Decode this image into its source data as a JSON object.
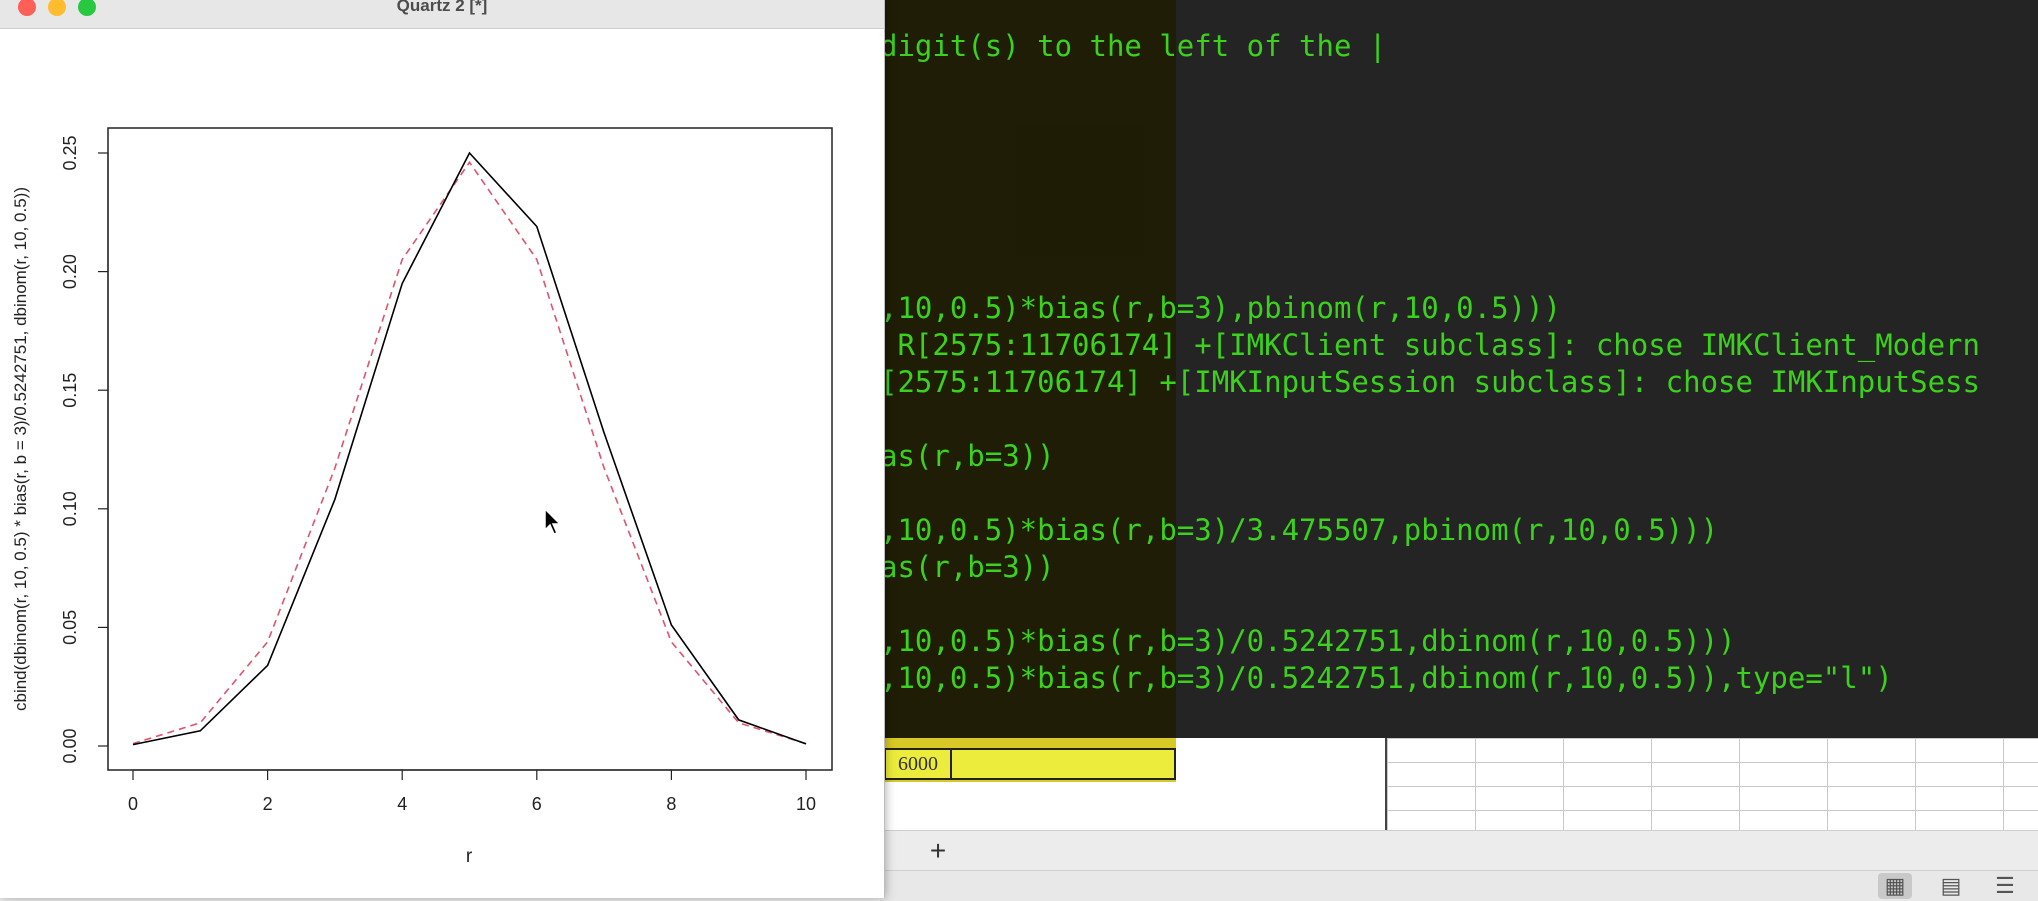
{
  "window": {
    "title": "Quartz 2 [*]"
  },
  "chart_data": {
    "type": "line",
    "xlabel": "r",
    "ylabel": "cbind(dbinom(r, 10, 0.5) * bias(r, b = 3)/0.5242751, dbinom(r, 10, 0.5))",
    "xlim": [
      0,
      10
    ],
    "ylim": [
      0,
      0.25
    ],
    "x_ticks": [
      "0",
      "2",
      "4",
      "6",
      "8",
      "10"
    ],
    "y_ticks": [
      "0.00",
      "0.05",
      "0.10",
      "0.15",
      "0.20",
      "0.25"
    ],
    "grid": false,
    "x": [
      0,
      1,
      2,
      3,
      4,
      5,
      6,
      7,
      8,
      9,
      10
    ],
    "series": [
      {
        "color": "#000000",
        "style": "solid",
        "values": [
          0.0006,
          0.0064,
          0.034,
          0.104,
          0.195,
          0.25,
          0.219,
          0.132,
          0.051,
          0.011,
          0.0009
        ]
      },
      {
        "color": "#df536b",
        "style": "dashed",
        "values": [
          0.001,
          0.0098,
          0.0439,
          0.1172,
          0.2051,
          0.2461,
          0.2051,
          0.1172,
          0.0439,
          0.0098,
          0.001
        ]
      }
    ]
  },
  "terminal": {
    "lines": [
      "digit(s) to the left of the |",
      ",10,0.5)*bias(r,b=3),pbinom(r,10,0.5)))",
      " R[2575:11706174] +[IMKClient subclass]: chose IMKClient_Modern",
      "[2575:11706174] +[IMKInputSession subclass]: chose IMKInputSess",
      "as(r,b=3))",
      ",10,0.5)*bias(r,b=3)/3.475507,pbinom(r,10,0.5)))",
      "as(r,b=3))",
      ",10,0.5)*bias(r,b=3)/0.5242751,dbinom(r,10,0.5)))",
      ",10,0.5)*bias(r,b=3)/0.5242751,dbinom(r,10,0.5)),type=\"l\")"
    ]
  },
  "spreadsheet": {
    "cell_value": "6000",
    "add_sheet_label": "+"
  },
  "statusbar": {
    "icons": [
      "normal-view-icon",
      "page-layout-icon",
      "page-break-icon"
    ]
  }
}
